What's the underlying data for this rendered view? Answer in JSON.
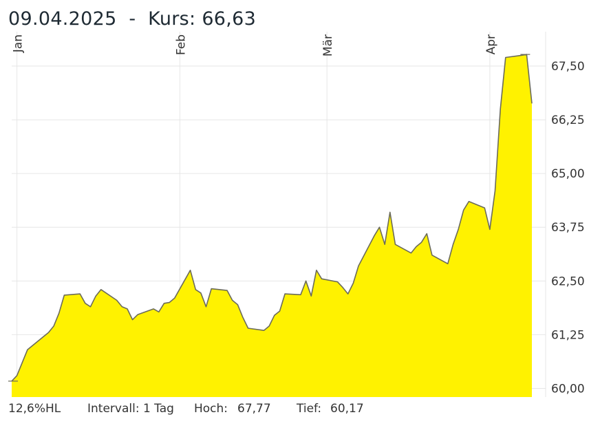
{
  "header": {
    "date": "09.04.2025",
    "separator": "  -  ",
    "kurs_label": "Kurs:",
    "kurs_value": "66,63"
  },
  "footer": {
    "range_label": "12,6%HL",
    "interval_label": "Intervall: 1 Tag",
    "high_label": "Hoch:",
    "high_value": "67,77",
    "low_label": "Tief:",
    "low_value": "60,17"
  },
  "colors": {
    "fill": "#fff200",
    "line": "#6b6b5a",
    "grid": "#e6e6e6"
  },
  "chart_data": {
    "type": "area",
    "ylim": [
      59.8,
      68.3
    ],
    "yticks": [
      60.0,
      61.25,
      62.5,
      63.75,
      65.0,
      66.25,
      67.5
    ],
    "ytick_labels": [
      "60,00",
      "61,25",
      "62,50",
      "63,75",
      "65,00",
      "66,25",
      "67,50"
    ],
    "grid": true,
    "month_markers": [
      {
        "label": "Jan",
        "date": "2025-01-01"
      },
      {
        "label": "Feb",
        "date": "2025-02-01"
      },
      {
        "label": "Mär",
        "date": "2025-03-01"
      },
      {
        "label": "Apr",
        "date": "2025-04-01"
      }
    ],
    "x_start": "2024-12-31",
    "x_end": "2025-04-09",
    "x": [
      "2024-12-31",
      "2025-01-01",
      "2025-01-03",
      "2025-01-06",
      "2025-01-07",
      "2025-01-08",
      "2025-01-09",
      "2025-01-10",
      "2025-01-13",
      "2025-01-14",
      "2025-01-15",
      "2025-01-16",
      "2025-01-17",
      "2025-01-20",
      "2025-01-21",
      "2025-01-22",
      "2025-01-23",
      "2025-01-24",
      "2025-01-27",
      "2025-01-28",
      "2025-01-29",
      "2025-01-30",
      "2025-01-31",
      "2025-02-03",
      "2025-02-04",
      "2025-02-05",
      "2025-02-06",
      "2025-02-07",
      "2025-02-10",
      "2025-02-11",
      "2025-02-12",
      "2025-02-13",
      "2025-02-14",
      "2025-02-17",
      "2025-02-18",
      "2025-02-19",
      "2025-02-20",
      "2025-02-21",
      "2025-02-24",
      "2025-02-25",
      "2025-02-26",
      "2025-02-27",
      "2025-02-28",
      "2025-03-03",
      "2025-03-04",
      "2025-03-05",
      "2025-03-06",
      "2025-03-07",
      "2025-03-10",
      "2025-03-11",
      "2025-03-12",
      "2025-03-13",
      "2025-03-14",
      "2025-03-17",
      "2025-03-18",
      "2025-03-19",
      "2025-03-20",
      "2025-03-21",
      "2025-03-24",
      "2025-03-25",
      "2025-03-26",
      "2025-03-27",
      "2025-03-28",
      "2025-03-31",
      "2025-04-01",
      "2025-04-02",
      "2025-04-03",
      "2025-04-04",
      "2025-04-07",
      "2025-04-08",
      "2025-04-09"
    ],
    "values": [
      60.17,
      60.3,
      60.9,
      61.2,
      61.3,
      61.45,
      61.75,
      62.17,
      62.2,
      61.98,
      61.9,
      62.15,
      62.3,
      62.05,
      61.9,
      61.85,
      61.6,
      61.72,
      61.85,
      61.78,
      61.98,
      62.0,
      62.1,
      62.75,
      62.3,
      62.22,
      61.9,
      62.32,
      62.28,
      62.05,
      61.95,
      61.65,
      61.4,
      61.35,
      61.45,
      61.7,
      61.8,
      62.2,
      62.18,
      62.5,
      62.15,
      62.75,
      62.55,
      62.48,
      62.35,
      62.2,
      62.45,
      62.85,
      63.55,
      63.75,
      63.35,
      64.1,
      63.35,
      63.15,
      63.3,
      63.4,
      63.6,
      63.1,
      62.9,
      63.35,
      63.7,
      64.15,
      64.35,
      64.2,
      63.7,
      64.6,
      66.5,
      67.7,
      67.75,
      67.77,
      66.63
    ]
  }
}
